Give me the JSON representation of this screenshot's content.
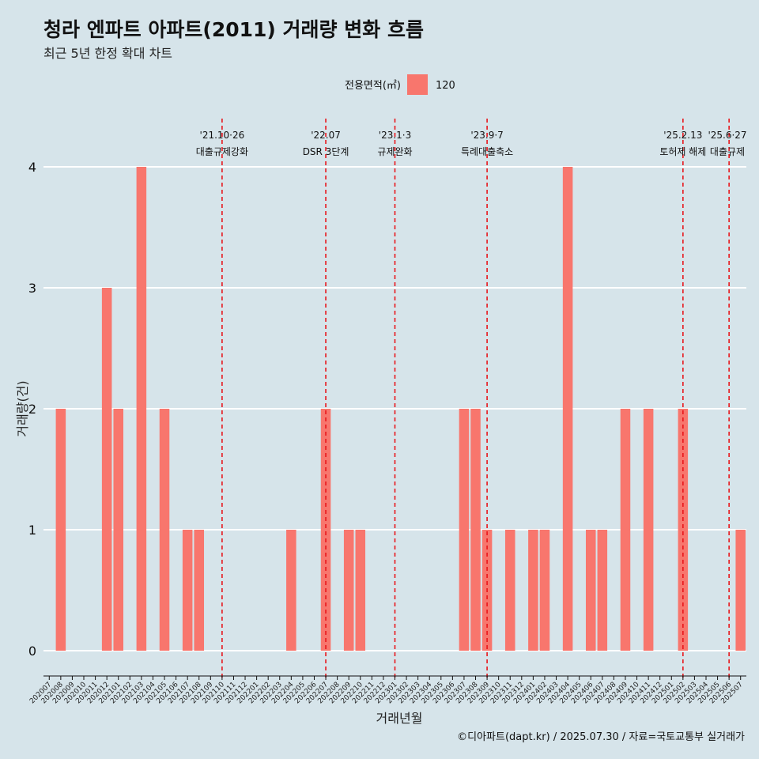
{
  "title": "청라 엔파트 아파트(2011) 거래량 변화 흐름",
  "subtitle": "최근 5년 한정 확대 차트",
  "caption": "©디아파트(dapt.kr) / 2025.07.30 / 자료=국토교통부 실거래가",
  "legend": {
    "title": "전용면적(㎡)",
    "items": [
      {
        "label": "120",
        "color": "#f8766d"
      }
    ]
  },
  "colors": {
    "bar": "#f8766d",
    "background": "#d6e4ea",
    "grid": "#ffffff",
    "event_line": "#e8161b"
  },
  "chart_data": {
    "type": "bar",
    "xlabel": "거래년월",
    "ylabel": "거래량(건)",
    "ylim": [
      0,
      4
    ],
    "y_ticks": [
      0,
      1,
      2,
      3,
      4
    ],
    "categories": [
      "202007",
      "202008",
      "202009",
      "202010",
      "202011",
      "202012",
      "202101",
      "202102",
      "202103",
      "202104",
      "202105",
      "202106",
      "202107",
      "202108",
      "202109",
      "202110",
      "202111",
      "202112",
      "202201",
      "202202",
      "202203",
      "202204",
      "202205",
      "202206",
      "202207",
      "202208",
      "202209",
      "202210",
      "202211",
      "202212",
      "202301",
      "202302",
      "202303",
      "202304",
      "202305",
      "202306",
      "202307",
      "202308",
      "202309",
      "202310",
      "202311",
      "202312",
      "202401",
      "202402",
      "202403",
      "202404",
      "202405",
      "202406",
      "202407",
      "202408",
      "202409",
      "202410",
      "202411",
      "202412",
      "202501",
      "202502",
      "202503",
      "202504",
      "202505",
      "202506",
      "202507"
    ],
    "series": [
      {
        "name": "120",
        "values": [
          0,
          2,
          0,
          0,
          0,
          3,
          2,
          0,
          4,
          0,
          2,
          0,
          1,
          1,
          0,
          0,
          0,
          0,
          0,
          0,
          0,
          1,
          0,
          0,
          2,
          0,
          1,
          1,
          0,
          0,
          0,
          0,
          0,
          0,
          0,
          0,
          2,
          2,
          1,
          0,
          1,
          0,
          1,
          1,
          0,
          4,
          0,
          1,
          1,
          0,
          2,
          0,
          2,
          0,
          0,
          2,
          0,
          0,
          0,
          0,
          1
        ]
      }
    ],
    "events": [
      {
        "x": "202110",
        "date": "'21.10·26",
        "label": "대출규제강화"
      },
      {
        "x": "202207",
        "date": "'22.07",
        "label": "DSR 3단계"
      },
      {
        "x": "202301",
        "date": "'23.1·3",
        "label": "규제완화"
      },
      {
        "x": "202309",
        "date": "'23.9·7",
        "label": "특례대출축소"
      },
      {
        "x": "202502",
        "date": "'25.2.13",
        "label": "토허제 해제"
      },
      {
        "x": "202506",
        "date": "'25.6·27",
        "label": "대출규제"
      }
    ]
  }
}
